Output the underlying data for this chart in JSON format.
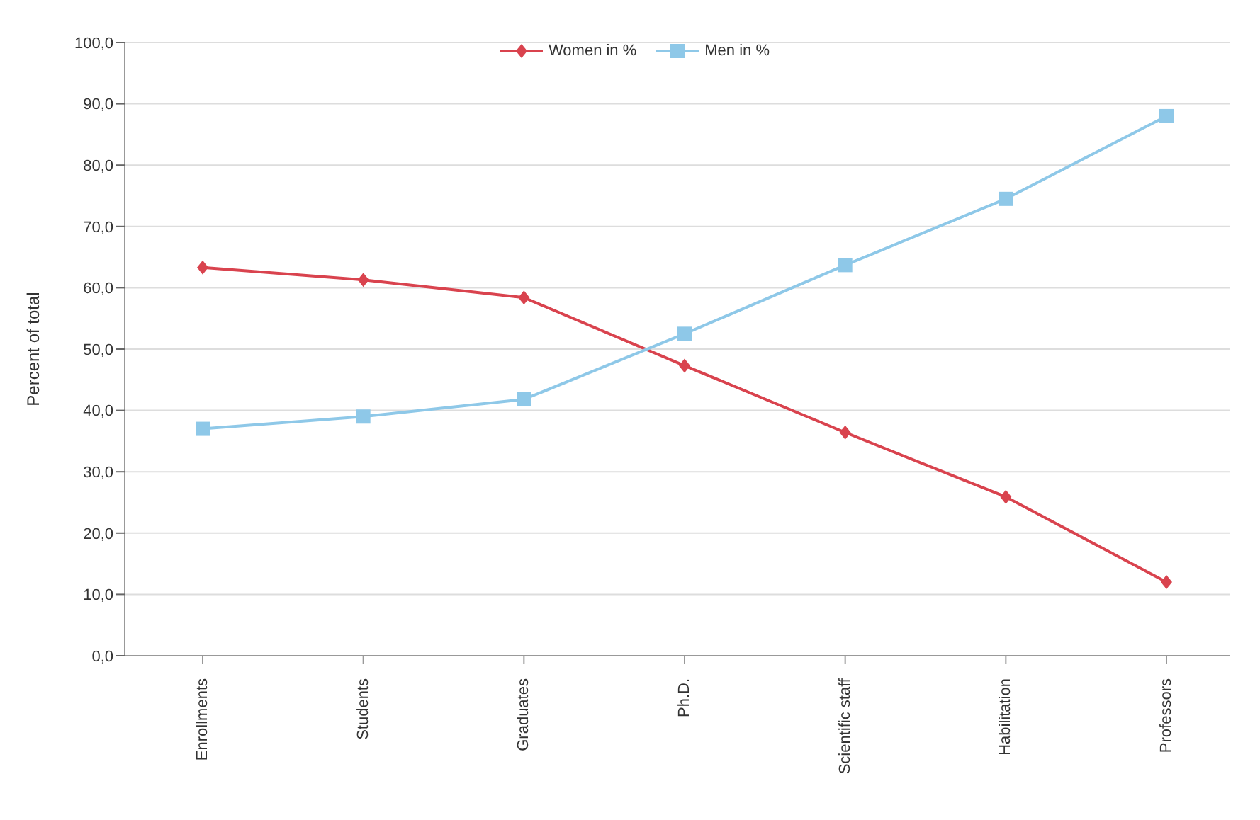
{
  "chart_data": {
    "type": "line",
    "ylabel": "Percent of total",
    "categories": [
      "Enrollments",
      "Students",
      "Graduates",
      "Ph.D.",
      "Scientific staff",
      "Habilitation",
      "Professors"
    ],
    "series": [
      {
        "name": "Women in %",
        "color": "#d9434e",
        "marker": "diamond",
        "values": [
          63.3,
          61.3,
          58.4,
          47.3,
          36.4,
          25.9,
          12.0
        ]
      },
      {
        "name": "Men in %",
        "color": "#8ec8e8",
        "marker": "square",
        "values": [
          37.0,
          39.0,
          41.8,
          52.5,
          63.7,
          74.5,
          88.0
        ]
      }
    ],
    "ylim": [
      0,
      100
    ],
    "yticks": [
      {
        "value": 0,
        "label": "0,0"
      },
      {
        "value": 10,
        "label": "10,0"
      },
      {
        "value": 20,
        "label": "20,0"
      },
      {
        "value": 30,
        "label": "30,0"
      },
      {
        "value": 40,
        "label": "40,0"
      },
      {
        "value": 50,
        "label": "50,0"
      },
      {
        "value": 60,
        "label": "60,0"
      },
      {
        "value": 70,
        "label": "70,0"
      },
      {
        "value": 80,
        "label": "80,0"
      },
      {
        "value": 90,
        "label": "90,0"
      },
      {
        "value": 100,
        "label": "100,0"
      }
    ],
    "grid": "y",
    "legend": "top",
    "line_style": "solid"
  }
}
